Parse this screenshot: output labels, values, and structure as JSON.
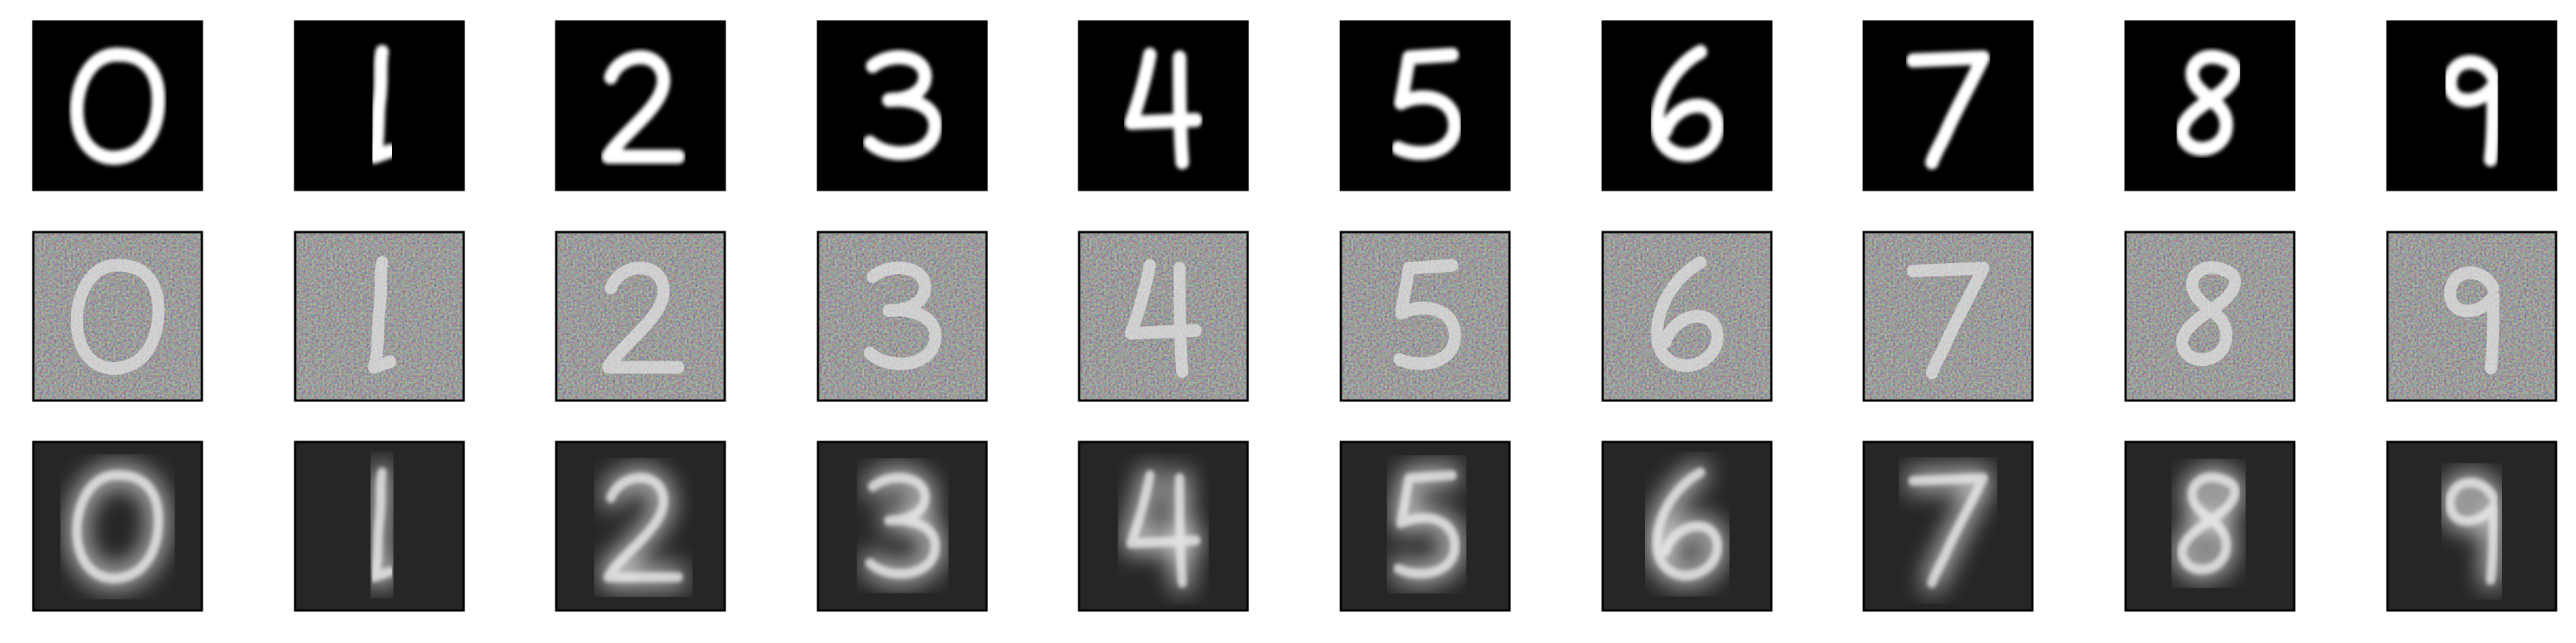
{
  "figure": {
    "rows": [
      {
        "kind": "original",
        "digits": [
          "0",
          "1",
          "2",
          "3",
          "4",
          "5",
          "6",
          "7",
          "8",
          "9"
        ],
        "background": "#000000",
        "stroke": "#ffffff",
        "noise": 0,
        "blur": 0
      },
      {
        "kind": "noisy",
        "digits": [
          "0",
          "1",
          "2",
          "3",
          "4",
          "5",
          "6",
          "7",
          "8",
          "9"
        ],
        "background": "#5a5a5a",
        "stroke": "#e8e8e8",
        "noise": 1,
        "blur": 0
      },
      {
        "kind": "reconstructed",
        "digits": [
          "0",
          "1",
          "2",
          "3",
          "4",
          "5",
          "6",
          "7",
          "8",
          "9"
        ],
        "background": "#262626",
        "stroke": "#f0f0f0",
        "noise": 0,
        "blur": 1
      }
    ]
  }
}
